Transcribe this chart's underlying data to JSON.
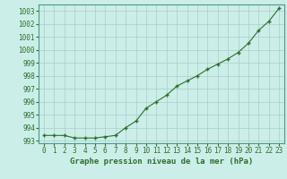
{
  "x": [
    0,
    1,
    2,
    3,
    4,
    5,
    6,
    7,
    8,
    9,
    10,
    11,
    12,
    13,
    14,
    15,
    16,
    17,
    18,
    19,
    20,
    21,
    22,
    23
  ],
  "y": [
    993.4,
    993.4,
    993.4,
    993.2,
    993.2,
    993.2,
    993.3,
    993.4,
    994.0,
    994.5,
    995.5,
    996.0,
    996.5,
    997.2,
    997.6,
    998.0,
    998.5,
    998.9,
    999.3,
    999.8,
    1000.5,
    1001.5,
    1002.2,
    1003.2
  ],
  "line_color": "#2d6e2d",
  "marker_color": "#2d6e2d",
  "bg_color": "#cceee8",
  "grid_color": "#aacccc",
  "xlabel": "Graphe pression niveau de la mer (hPa)",
  "xlabel_color": "#2d6e2d",
  "tick_color": "#2d6e2d",
  "ylim_min": 992.8,
  "ylim_max": 1003.5,
  "xlim_min": -0.5,
  "xlim_max": 23.5,
  "yticks": [
    993,
    994,
    995,
    996,
    997,
    998,
    999,
    1000,
    1001,
    1002,
    1003
  ],
  "xticks": [
    0,
    1,
    2,
    3,
    4,
    5,
    6,
    7,
    8,
    9,
    10,
    11,
    12,
    13,
    14,
    15,
    16,
    17,
    18,
    19,
    20,
    21,
    22,
    23
  ],
  "tick_fontsize": 5.5,
  "xlabel_fontsize": 6.5
}
